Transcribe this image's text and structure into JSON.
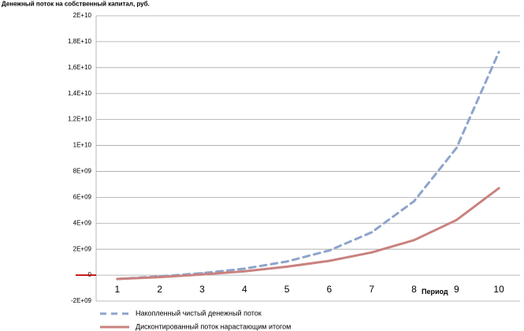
{
  "chart_data": {
    "type": "line",
    "title": "Денежный поток на собственный капитал, руб.",
    "xlabel": "Период",
    "ylabel": "",
    "categories": [
      "1",
      "2",
      "3",
      "4",
      "5",
      "6",
      "7",
      "8",
      "9",
      "10"
    ],
    "ylim": [
      -2000000000,
      20000000000
    ],
    "yticks": [
      {
        "value": 20000000000,
        "label": "2E+10"
      },
      {
        "value": 18000000000,
        "label": "1,8E+10"
      },
      {
        "value": 16000000000,
        "label": "1,6E+10"
      },
      {
        "value": 14000000000,
        "label": "1,4E+10"
      },
      {
        "value": 12000000000,
        "label": "1,2E+10"
      },
      {
        "value": 10000000000,
        "label": "1E+10"
      },
      {
        "value": 8000000000,
        "label": "8E+09"
      },
      {
        "value": 6000000000,
        "label": "6E+09"
      },
      {
        "value": 4000000000,
        "label": "4E+09"
      },
      {
        "value": 2000000000,
        "label": "2E+09"
      },
      {
        "value": 0,
        "label": "0"
      },
      {
        "value": -2000000000,
        "label": "-2E+09"
      }
    ],
    "grid": true,
    "legend_position": "bottom-left",
    "series": [
      {
        "name": "Накопленный чистый денежный поток",
        "style": "dashed",
        "color": "#8EA4CB",
        "values": [
          -300000000,
          -100000000,
          150000000,
          500000000,
          1050000000,
          1900000000,
          3300000000,
          5700000000,
          9800000000,
          17200000000
        ]
      },
      {
        "name": "Дисконтированный поток нарастающим итогом",
        "style": "solid",
        "color": "#C9827F",
        "values": [
          -300000000,
          -150000000,
          50000000,
          300000000,
          650000000,
          1100000000,
          1750000000,
          2700000000,
          4250000000,
          6700000000
        ]
      }
    ]
  },
  "colors": {
    "grid": "#A6A6A6",
    "zero_marker": "#C00000"
  }
}
